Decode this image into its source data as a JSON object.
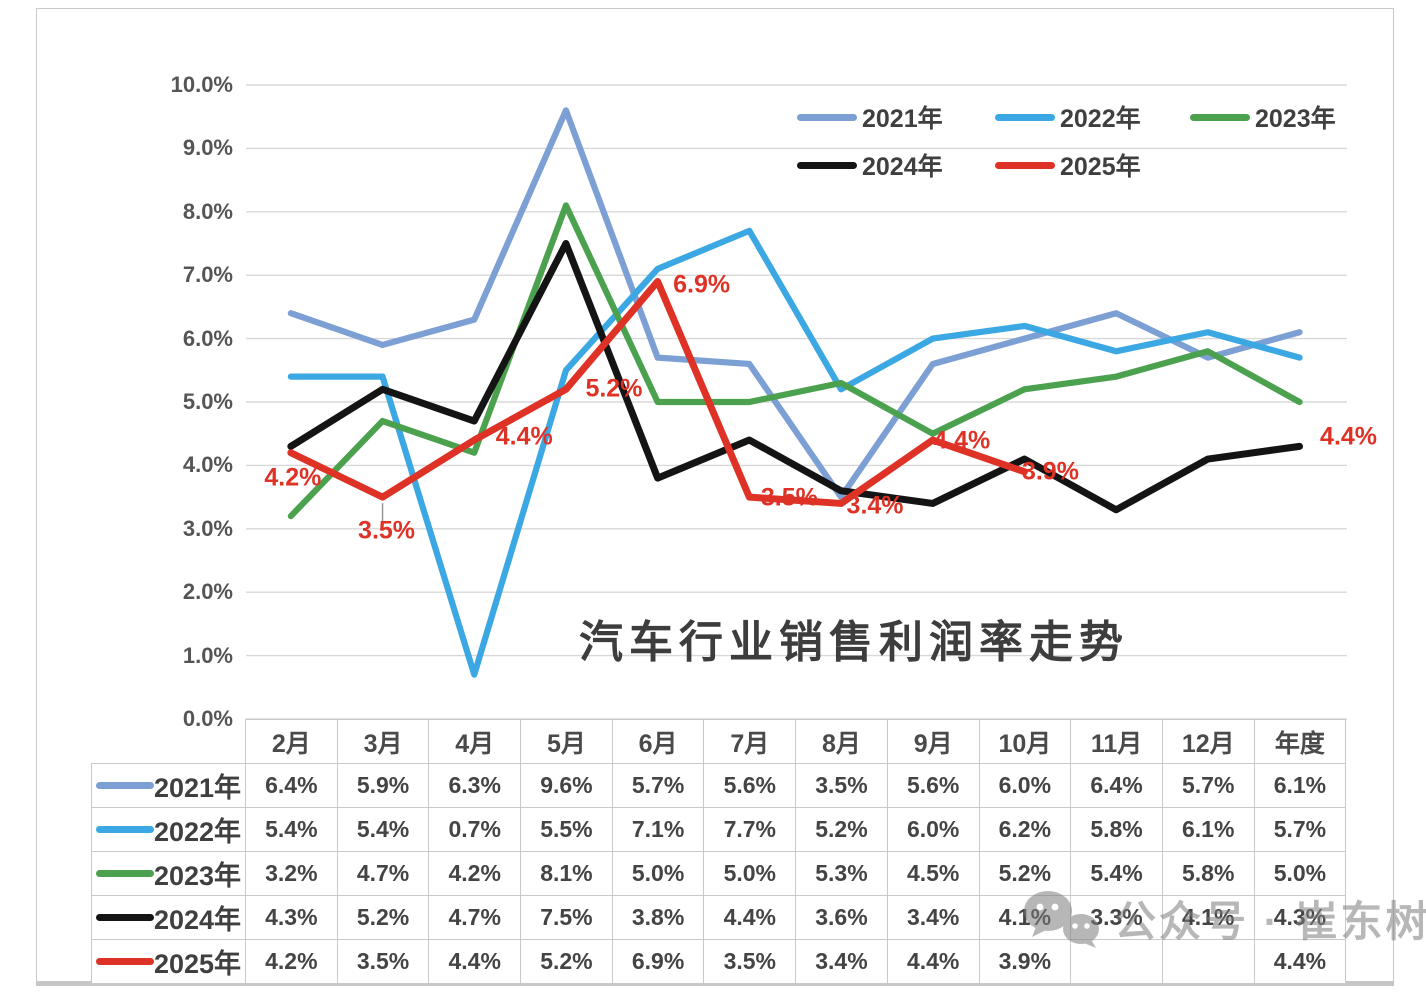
{
  "chart_data": {
    "type": "line",
    "title": "汽车行业销售利润率走势",
    "categories": [
      "2月",
      "3月",
      "4月",
      "5月",
      "6月",
      "7月",
      "8月",
      "9月",
      "10月",
      "11月",
      "12月",
      "年度"
    ],
    "ylim": [
      0,
      10
    ],
    "y_tick_labels": [
      "10.0%",
      "9.0%",
      "8.0%",
      "7.0%",
      "6.0%",
      "5.0%",
      "4.0%",
      "3.0%",
      "2.0%",
      "1.0%",
      "0.0%"
    ],
    "grid": true,
    "legend_position": "top-right",
    "legend_rows": [
      [
        "2021年",
        "2022年",
        "2023年"
      ],
      [
        "2024年",
        "2025年"
      ]
    ],
    "series": [
      {
        "name": "2021年",
        "color": "#7C9FD4",
        "values": [
          6.4,
          5.9,
          6.3,
          9.6,
          5.7,
          5.6,
          3.5,
          5.6,
          6.0,
          6.4,
          5.7,
          6.1
        ]
      },
      {
        "name": "2022年",
        "color": "#3BA7E3",
        "values": [
          5.4,
          5.4,
          0.7,
          5.5,
          7.1,
          7.7,
          5.2,
          6.0,
          6.2,
          5.8,
          6.1,
          5.7
        ]
      },
      {
        "name": "2023年",
        "color": "#4CA14F",
        "values": [
          3.2,
          4.7,
          4.2,
          8.1,
          5.0,
          5.0,
          5.3,
          4.5,
          5.2,
          5.4,
          5.8,
          5.0
        ]
      },
      {
        "name": "2024年",
        "color": "#141414",
        "values": [
          4.3,
          5.2,
          4.7,
          7.5,
          3.8,
          4.4,
          3.6,
          3.4,
          4.1,
          3.3,
          4.1,
          4.3
        ]
      },
      {
        "name": "2025年",
        "color": "#DF3226",
        "values": [
          4.2,
          3.5,
          4.4,
          5.2,
          6.9,
          3.5,
          3.4,
          4.4,
          3.9,
          null,
          null,
          4.4
        ],
        "point_labels": [
          "4.2%",
          "3.5%",
          "4.4%",
          "5.2%",
          "6.9%",
          "3.5%",
          "3.4%",
          "4.4%",
          "3.9%",
          null,
          null,
          "4.4%"
        ]
      }
    ]
  },
  "table": {
    "col_headers": [
      "2月",
      "3月",
      "4月",
      "5月",
      "6月",
      "7月",
      "8月",
      "9月",
      "10月",
      "11月",
      "12月",
      "年度"
    ],
    "rows": [
      {
        "label": "2021年",
        "cells": [
          "6.4%",
          "5.9%",
          "6.3%",
          "9.6%",
          "5.7%",
          "5.6%",
          "3.5%",
          "5.6%",
          "6.0%",
          "6.4%",
          "5.7%",
          "6.1%"
        ]
      },
      {
        "label": "2022年",
        "cells": [
          "5.4%",
          "5.4%",
          "0.7%",
          "5.5%",
          "7.1%",
          "7.7%",
          "5.2%",
          "6.0%",
          "6.2%",
          "5.8%",
          "6.1%",
          "5.7%"
        ]
      },
      {
        "label": "2023年",
        "cells": [
          "3.2%",
          "4.7%",
          "4.2%",
          "8.1%",
          "5.0%",
          "5.0%",
          "5.3%",
          "4.5%",
          "5.2%",
          "5.4%",
          "5.8%",
          "5.0%"
        ]
      },
      {
        "label": "2024年",
        "cells": [
          "4.3%",
          "5.2%",
          "4.7%",
          "7.5%",
          "3.8%",
          "4.4%",
          "3.6%",
          "3.4%",
          "4.1%",
          "3.3%",
          "4.1%",
          "4.3%"
        ]
      },
      {
        "label": "2025年",
        "cells": [
          "4.2%",
          "3.5%",
          "4.4%",
          "5.2%",
          "6.9%",
          "3.5%",
          "3.4%",
          "4.4%",
          "3.9%",
          "",
          "",
          "4.4%"
        ]
      }
    ]
  },
  "watermark": {
    "text": "公众号 · 崔东树"
  }
}
